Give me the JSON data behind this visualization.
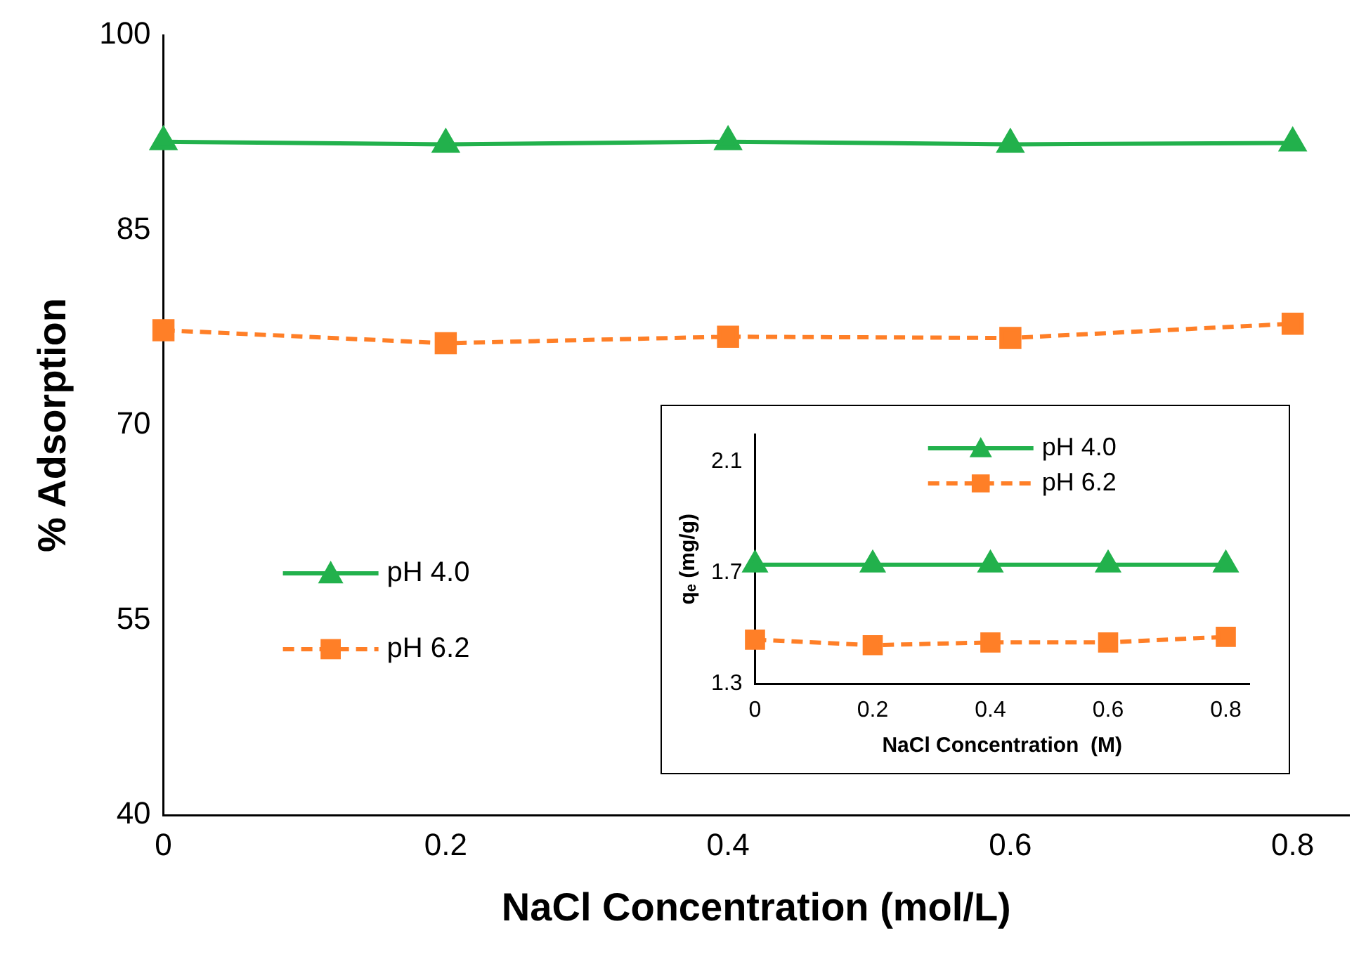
{
  "chart_data": [
    {
      "type": "line",
      "xlabel": "NaCl Concentration (mol/L)",
      "ylabel": "% Adsorption",
      "x": [
        0,
        0.2,
        0.4,
        0.6,
        0.8
      ],
      "xlim": [
        0,
        0.84
      ],
      "xticks": [
        0,
        0.2,
        0.4,
        0.6,
        0.8
      ],
      "ylim": [
        40,
        100
      ],
      "yticks": [
        40,
        55,
        70,
        85,
        100
      ],
      "grid": false,
      "legend": "left",
      "series": [
        {
          "name": "pH 4.0",
          "color": "#22b14c",
          "marker": "triangle",
          "line_style": "solid",
          "values": [
            91.8,
            91.6,
            91.8,
            91.6,
            91.7
          ]
        },
        {
          "name": "pH 6.2",
          "color": "#ff7f27",
          "marker": "square",
          "line_style": "dashed",
          "values": [
            77.3,
            76.3,
            76.8,
            76.7,
            77.8
          ]
        }
      ]
    },
    {
      "type": "line",
      "xlabel": "NaCl Concentration  (M)",
      "ylabel": "qₑ (mg/g)",
      "x": [
        0,
        0.2,
        0.4,
        0.6,
        0.8
      ],
      "xlim": [
        0,
        0.84
      ],
      "xticks": [
        0,
        0.2,
        0.4,
        0.6,
        0.8
      ],
      "ylim": [
        1.3,
        2.2
      ],
      "yticks": [
        1.3,
        1.7,
        2.1
      ],
      "grid": false,
      "legend": "top",
      "series": [
        {
          "name": "pH 4.0",
          "color": "#22b14c",
          "marker": "triangle",
          "line_style": "solid",
          "values": [
            1.73,
            1.73,
            1.73,
            1.73,
            1.73
          ]
        },
        {
          "name": "pH 6.2",
          "color": "#ff7f27",
          "marker": "square",
          "line_style": "dashed",
          "values": [
            1.46,
            1.44,
            1.45,
            1.45,
            1.47
          ]
        }
      ]
    }
  ]
}
